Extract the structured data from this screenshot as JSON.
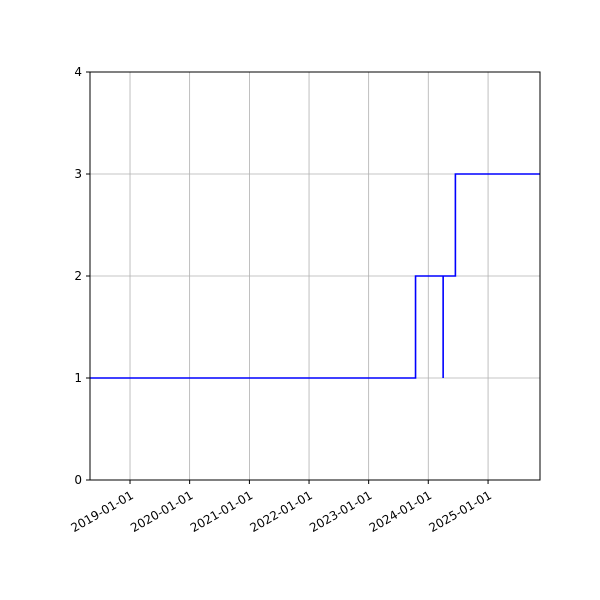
{
  "chart_data": {
    "type": "line",
    "style": "step",
    "title": "",
    "xlabel": "",
    "ylabel": "",
    "x_type": "date",
    "xlim": [
      "2018-05-01",
      "2025-11-15"
    ],
    "ylim": [
      0,
      4
    ],
    "x_ticks": [
      "2019-01-01",
      "2020-01-01",
      "2021-01-01",
      "2022-01-01",
      "2023-01-01",
      "2024-01-01",
      "2025-01-01"
    ],
    "y_ticks": [
      0,
      1,
      2,
      3,
      4
    ],
    "grid": true,
    "legend": "none",
    "series": [
      {
        "color": "#0000ff",
        "points": [
          {
            "x": "2018-05-01",
            "y": 1
          },
          {
            "x": "2023-10-15",
            "y": 1
          },
          {
            "x": "2023-10-15",
            "y": 2
          },
          {
            "x": "2024-04-01",
            "y": 2
          },
          {
            "x": "2024-04-01",
            "y": 1
          },
          {
            "x": "2024-04-01",
            "y": 2
          },
          {
            "x": "2024-06-15",
            "y": 2
          },
          {
            "x": "2024-06-15",
            "y": 3
          },
          {
            "x": "2025-11-15",
            "y": 3
          }
        ]
      }
    ]
  },
  "colors": {
    "line": "#0000ff",
    "grid": "#b0b0b0",
    "axis": "#000000"
  }
}
